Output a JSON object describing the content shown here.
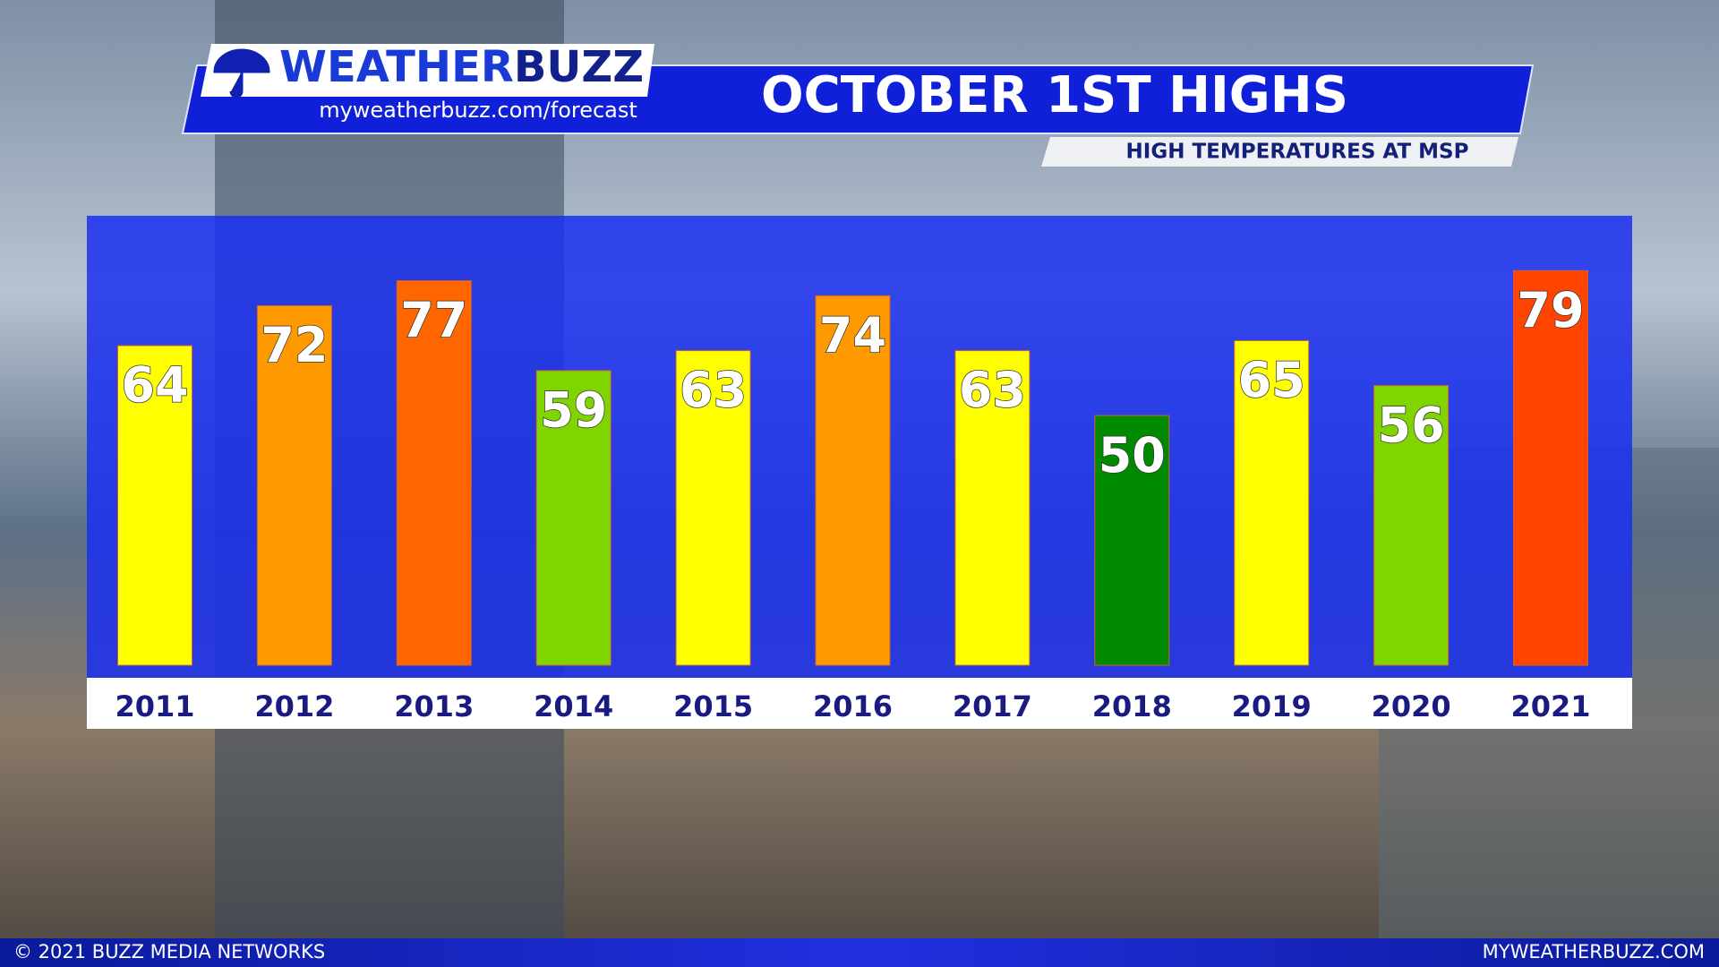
{
  "header": {
    "logo_parts": [
      "WEATHER",
      "BUZZ"
    ],
    "url": "myweatherbuzz.com/forecast"
  },
  "chart_data": {
    "type": "bar",
    "title": "OCTOBER 1ST HIGHS",
    "subtitle": "HIGH TEMPERATURES AT MSP",
    "categories": [
      "2011",
      "2012",
      "2013",
      "2014",
      "2015",
      "2016",
      "2017",
      "2018",
      "2019",
      "2020",
      "2021"
    ],
    "values": [
      64,
      72,
      77,
      59,
      63,
      74,
      63,
      50,
      65,
      56,
      79
    ],
    "colors": [
      "#ffff00",
      "#ff9900",
      "#ff6600",
      "#80d400",
      "#ffff00",
      "#ff9900",
      "#ffff00",
      "#008a00",
      "#ffff00",
      "#80d400",
      "#ff4400"
    ],
    "ylim": [
      0,
      90
    ]
  },
  "footer": {
    "left": "© 2021 BUZZ MEDIA NETWORKS",
    "right": "MYWEATHERBUZZ.COM"
  }
}
